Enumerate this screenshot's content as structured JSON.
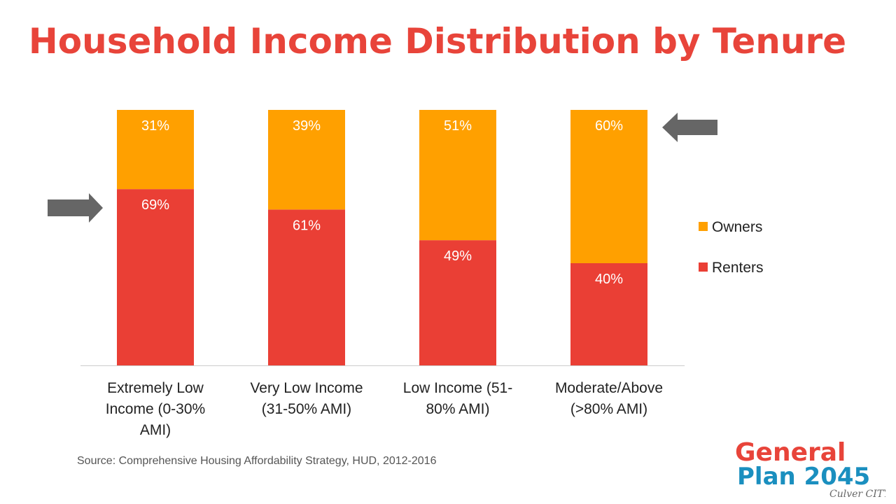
{
  "title": "Household Income Distribution by Tenure",
  "source": "Source: Comprehensive Housing Affordability Strategy, HUD, 2012-2016",
  "colors": {
    "owners": "#ffa000",
    "renters": "#ea3f35",
    "title": "#e8443a",
    "arrow": "#666666"
  },
  "chart_data": {
    "type": "bar",
    "stacked": true,
    "categories": [
      [
        "Extremely Low",
        "Income (0-30%",
        "AMI)"
      ],
      [
        "Very Low Income",
        "(31-50% AMI)"
      ],
      [
        "Low Income (51-",
        "80% AMI)"
      ],
      [
        "Moderate/Above",
        "(>80% AMI)"
      ]
    ],
    "series": [
      {
        "name": "Renters",
        "values": [
          69,
          61,
          49,
          40
        ],
        "labels": [
          "69%",
          "61%",
          "49%",
          "40%"
        ]
      },
      {
        "name": "Owners",
        "values": [
          31,
          39,
          51,
          60
        ],
        "labels": [
          "31%",
          "39%",
          "51%",
          "60%"
        ]
      }
    ],
    "ylim": [
      0,
      100
    ],
    "grid": false,
    "legend": [
      "Owners",
      "Renters"
    ],
    "legend_position": "right",
    "annotations": [
      {
        "type": "arrow",
        "target_category": 0,
        "pointing": "right"
      },
      {
        "type": "arrow",
        "target_category": 3,
        "pointing": "left"
      }
    ]
  },
  "logo": {
    "line1": "General",
    "line2": "Plan 2045",
    "subtitle": "Culver CITY"
  }
}
